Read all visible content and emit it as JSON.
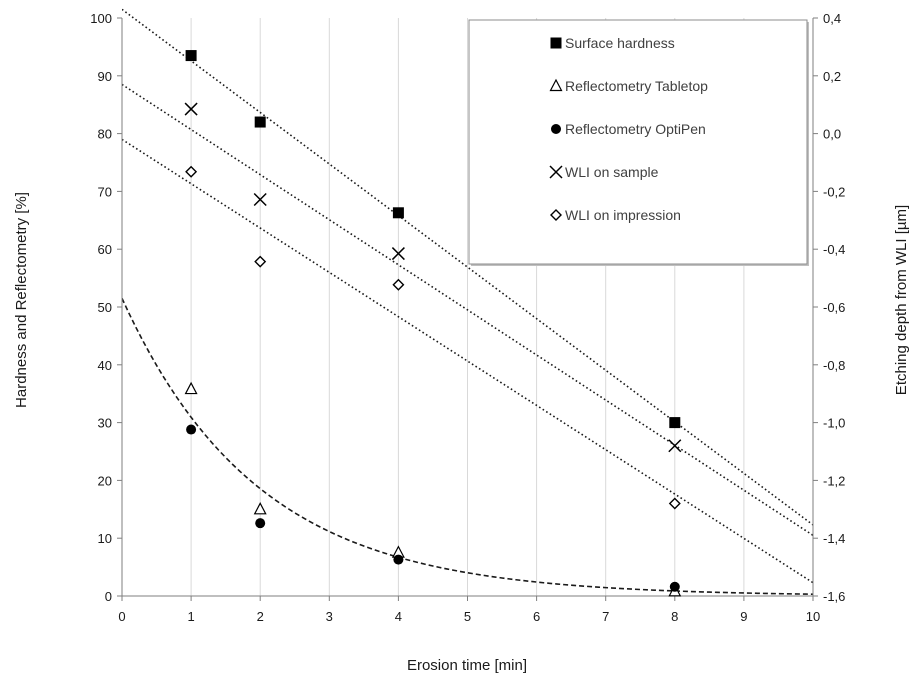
{
  "chart_data": {
    "type": "scatter",
    "title": "",
    "xlabel": "Erosion time [min]",
    "ylabel": "Hardness and Reflectometry [%]",
    "y2label": "Etching depth from WLI [µm]",
    "xlim": [
      0,
      10
    ],
    "ylim": [
      0,
      100
    ],
    "y2lim": [
      -1.6,
      0.4
    ],
    "x_ticks": [
      "0",
      "1",
      "2",
      "3",
      "4",
      "5",
      "6",
      "7",
      "8",
      "9",
      "10"
    ],
    "y_ticks": [
      "0",
      "10",
      "20",
      "30",
      "40",
      "50",
      "60",
      "70",
      "80",
      "90",
      "100"
    ],
    "y2_ticks": [
      "-1,6",
      "-1,4",
      "-1,2",
      "-1,0",
      "-0,8",
      "-0,6",
      "-0,4",
      "-0,2",
      "0,0",
      "0,2",
      "0,4"
    ],
    "grid": "vertical",
    "legend_position": "top-right",
    "series": [
      {
        "name": "Surface hardness",
        "marker": "square",
        "axis": "left",
        "x": [
          1,
          2,
          4,
          8
        ],
        "y": [
          93.5,
          82,
          66.3,
          30
        ]
      },
      {
        "name": "Reflectometry Tabletop",
        "marker": "triangle",
        "axis": "left",
        "x": [
          1,
          2,
          4,
          8
        ],
        "y": [
          35.8,
          15,
          7.5,
          0.8
        ]
      },
      {
        "name": "Reflectometry OptiPen",
        "marker": "circle",
        "axis": "left",
        "x": [
          1,
          2,
          4,
          8
        ],
        "y": [
          28.8,
          12.6,
          6.3,
          1.6
        ]
      },
      {
        "name": "WLI on sample",
        "marker": "x",
        "axis": "right",
        "x": [
          1,
          2,
          4,
          8
        ],
        "y": [
          0.085,
          -0.228,
          -0.415,
          -1.08
        ]
      },
      {
        "name": "WLI on impression",
        "marker": "diamond",
        "axis": "right",
        "x": [
          1,
          2,
          4,
          8
        ],
        "y": [
          -0.132,
          -0.443,
          -0.523,
          -1.28
        ]
      }
    ],
    "trendlines": [
      {
        "style": "dotted",
        "kind": "linear",
        "from": [
          0,
          101.5
        ],
        "to": [
          10,
          12.3
        ]
      },
      {
        "style": "dotted",
        "kind": "linear",
        "from": [
          0,
          88.5
        ],
        "to": [
          10,
          10.5
        ]
      },
      {
        "style": "dotted",
        "kind": "linear",
        "from": [
          0,
          79
        ],
        "to": [
          10,
          2.3
        ]
      },
      {
        "style": "dashed",
        "kind": "exponential",
        "a": 51.5,
        "b": 0.51
      }
    ]
  }
}
